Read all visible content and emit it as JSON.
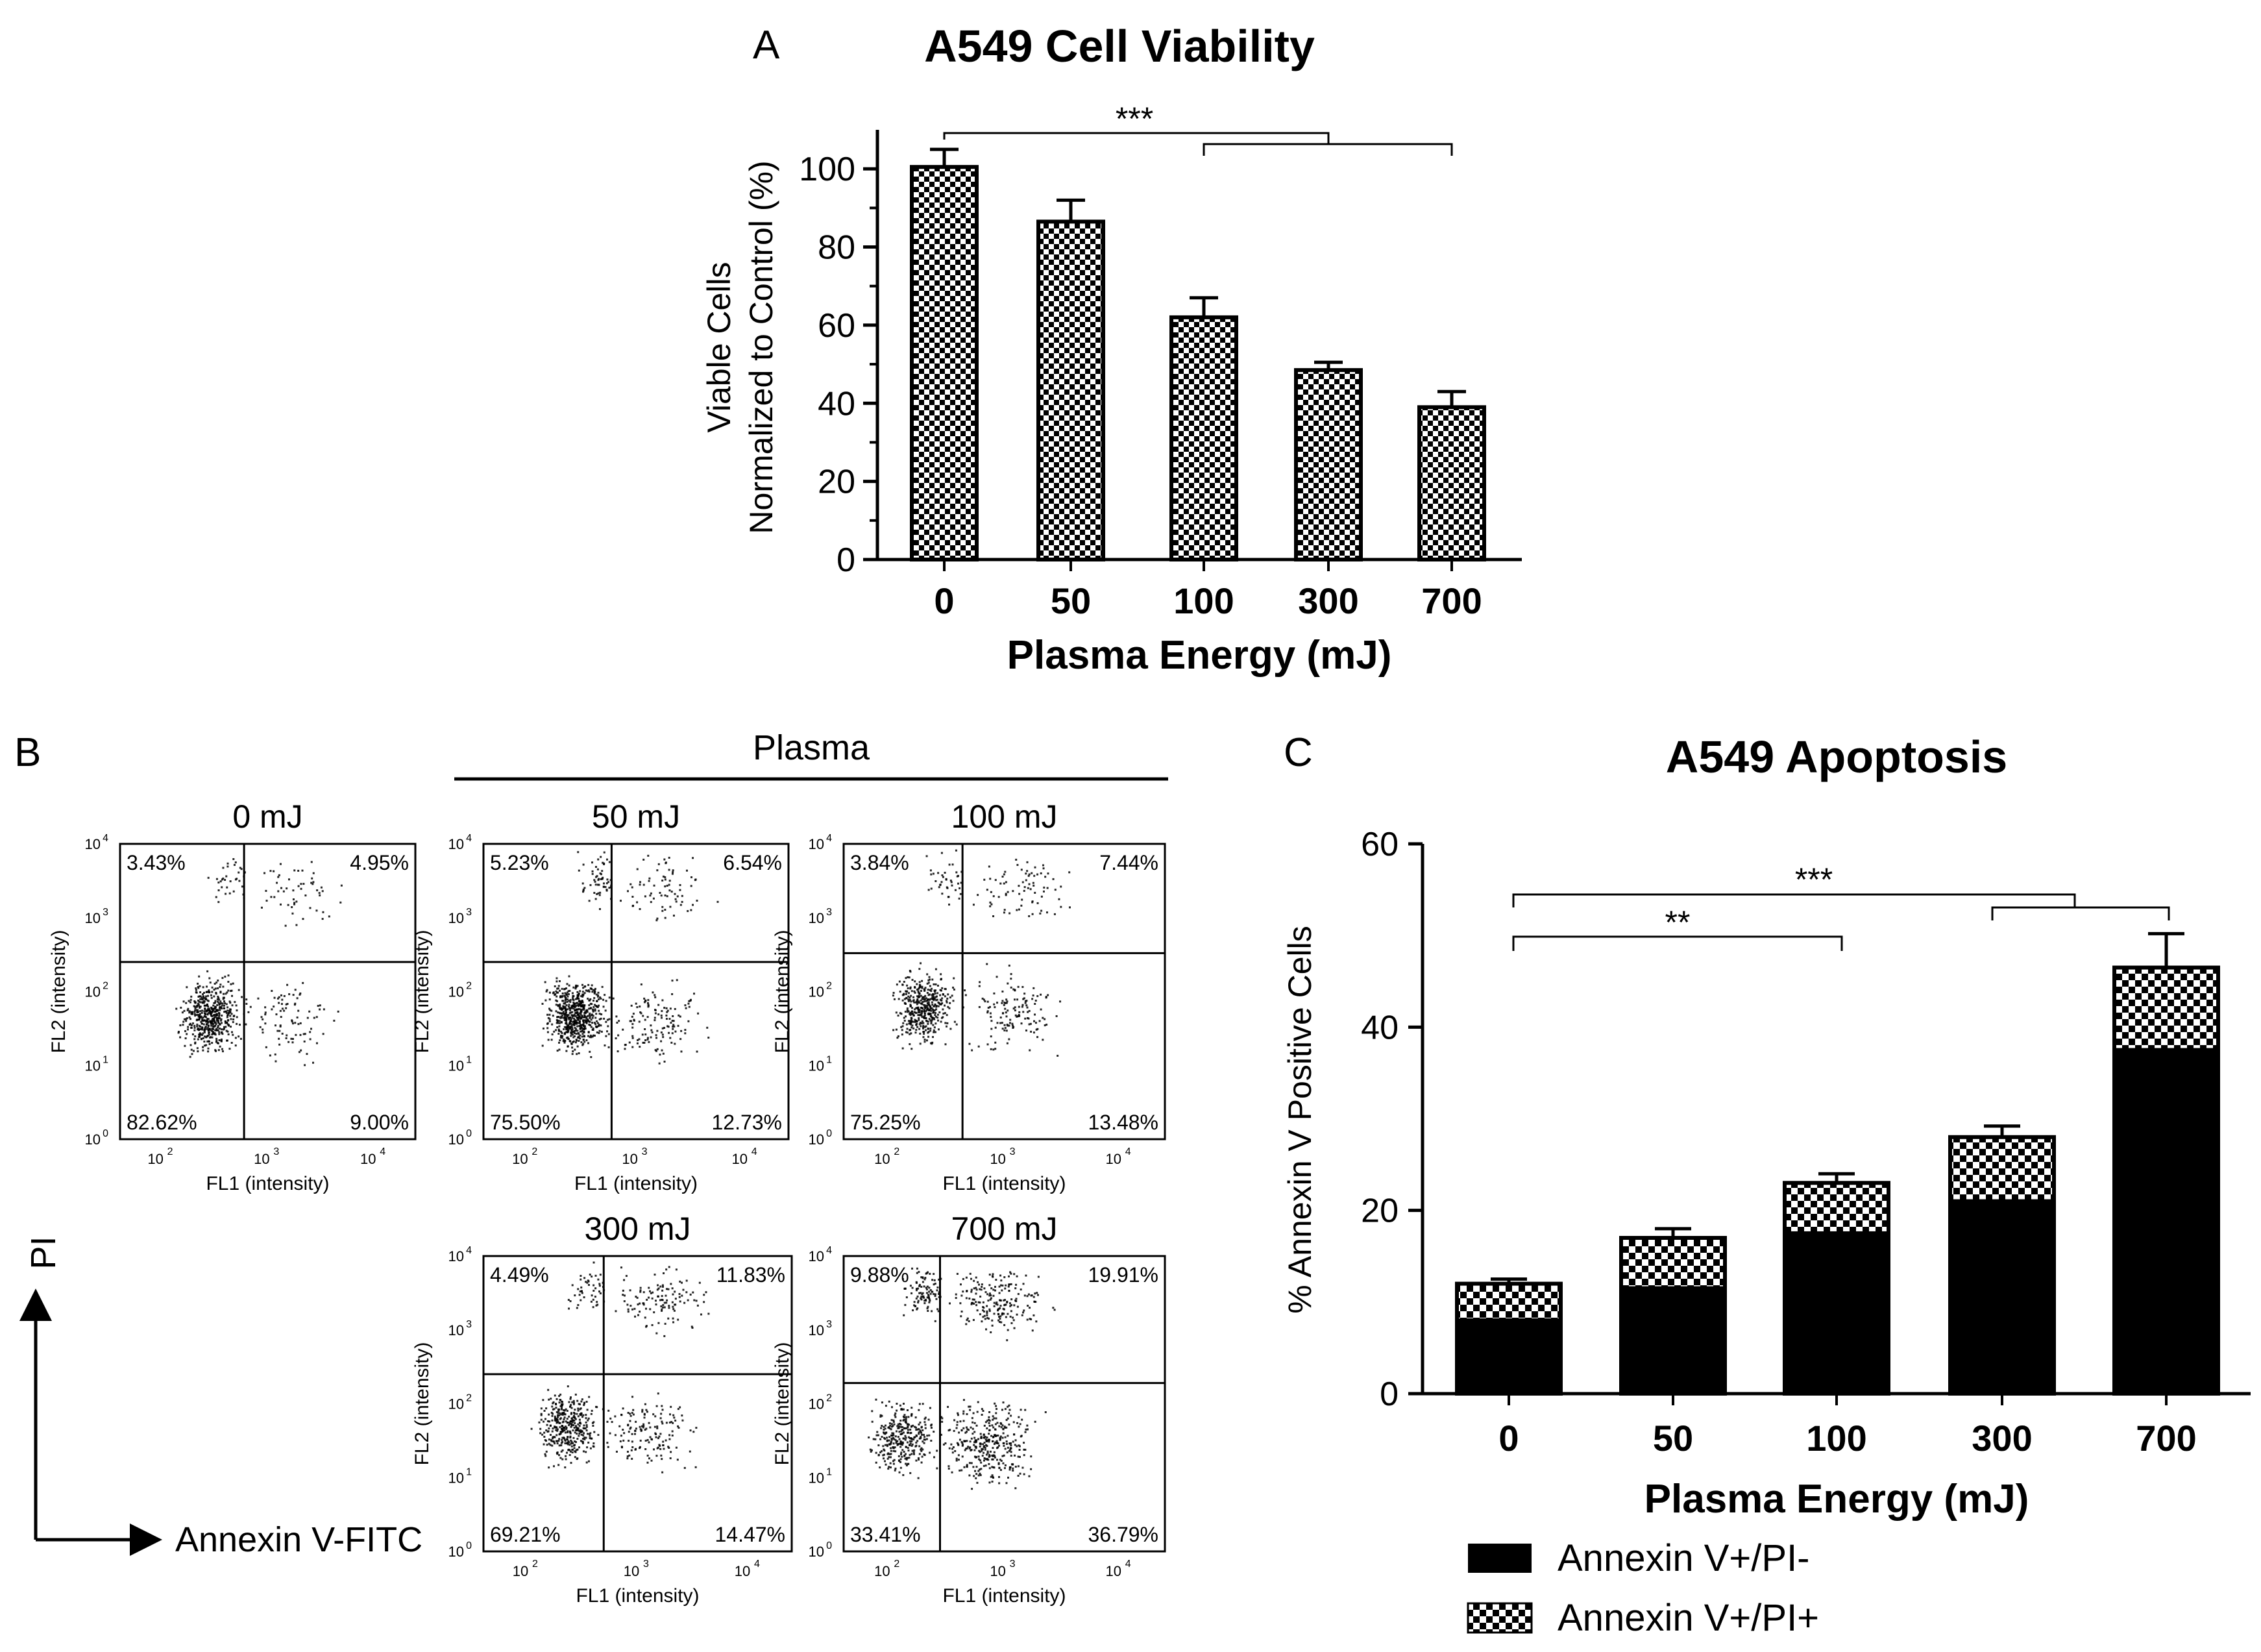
{
  "panel_a": {
    "letter": "A",
    "significance": "***"
  },
  "panel_b": {
    "letter": "B",
    "group_label": "Plasma",
    "axis_y_arrow": "PI",
    "axis_x_arrow": "Annexin V-FITC",
    "ylabel": "FL2 (intensity)",
    "xlabel": "FL1 (intensity)",
    "ticks": [
      "10",
      "10",
      "10",
      "10",
      "10"
    ],
    "tick_exps": [
      "0",
      "1",
      "2",
      "3",
      "4"
    ],
    "xtick_exps": [
      "2",
      "3",
      "4"
    ],
    "plots": [
      {
        "title": "0 mJ",
        "ul": "3.43%",
        "ur": "4.95%",
        "ll": "82.62%",
        "lr": "9.00%"
      },
      {
        "title": "50 mJ",
        "ul": "5.23%",
        "ur": "6.54%",
        "ll": "75.50%",
        "lr": "12.73%"
      },
      {
        "title": "100 mJ",
        "ul": "3.84%",
        "ur": "7.44%",
        "ll": "75.25%",
        "lr": "13.48%"
      },
      {
        "title": "300 mJ",
        "ul": "4.49%",
        "ur": "11.83%",
        "ll": "69.21%",
        "lr": "14.47%"
      },
      {
        "title": "700 mJ",
        "ul": "9.88%",
        "ur": "19.91%",
        "ll": "33.41%",
        "lr": "36.79%"
      }
    ]
  },
  "panel_c": {
    "letter": "C",
    "sig1": "**",
    "sig2": "***",
    "colors": {
      "solid": "#000000",
      "checker": "#ffffff"
    }
  },
  "chart_data": [
    {
      "type": "bar",
      "title": "A549 Cell Viability",
      "categories": [
        "0",
        "50",
        "100",
        "300",
        "700"
      ],
      "values": [
        100.5,
        86.5,
        62,
        48.5,
        39
      ],
      "errors": [
        4.5,
        5.5,
        5,
        2,
        4
      ],
      "xlabel": "Plasma Energy (mJ)",
      "ylabel_line1": "Viable Cells",
      "ylabel_line2": "Normalized to Control (%)",
      "yticks": [
        "0",
        "20",
        "40",
        "60",
        "80",
        "100"
      ],
      "ylim": [
        0,
        110
      ]
    },
    {
      "type": "bar",
      "title": "A549 Apoptosis",
      "categories": [
        "0",
        "50",
        "100",
        "300",
        "700"
      ],
      "series": [
        {
          "name": "Annexin V+/PI-",
          "values": [
            8,
            11.5,
            17.5,
            21,
            37.5
          ]
        },
        {
          "name": "Annexin V+/PI+",
          "values": [
            4,
            5.5,
            5.5,
            7,
            9
          ]
        }
      ],
      "errors": [
        0.5,
        1,
        1,
        1.2,
        3.7
      ],
      "xlabel": "Plasma Energy (mJ)",
      "ylabel": "% Annexin V Positive Cells",
      "yticks": [
        "0",
        "20",
        "40",
        "60"
      ],
      "ylim": [
        0,
        60
      ]
    }
  ]
}
